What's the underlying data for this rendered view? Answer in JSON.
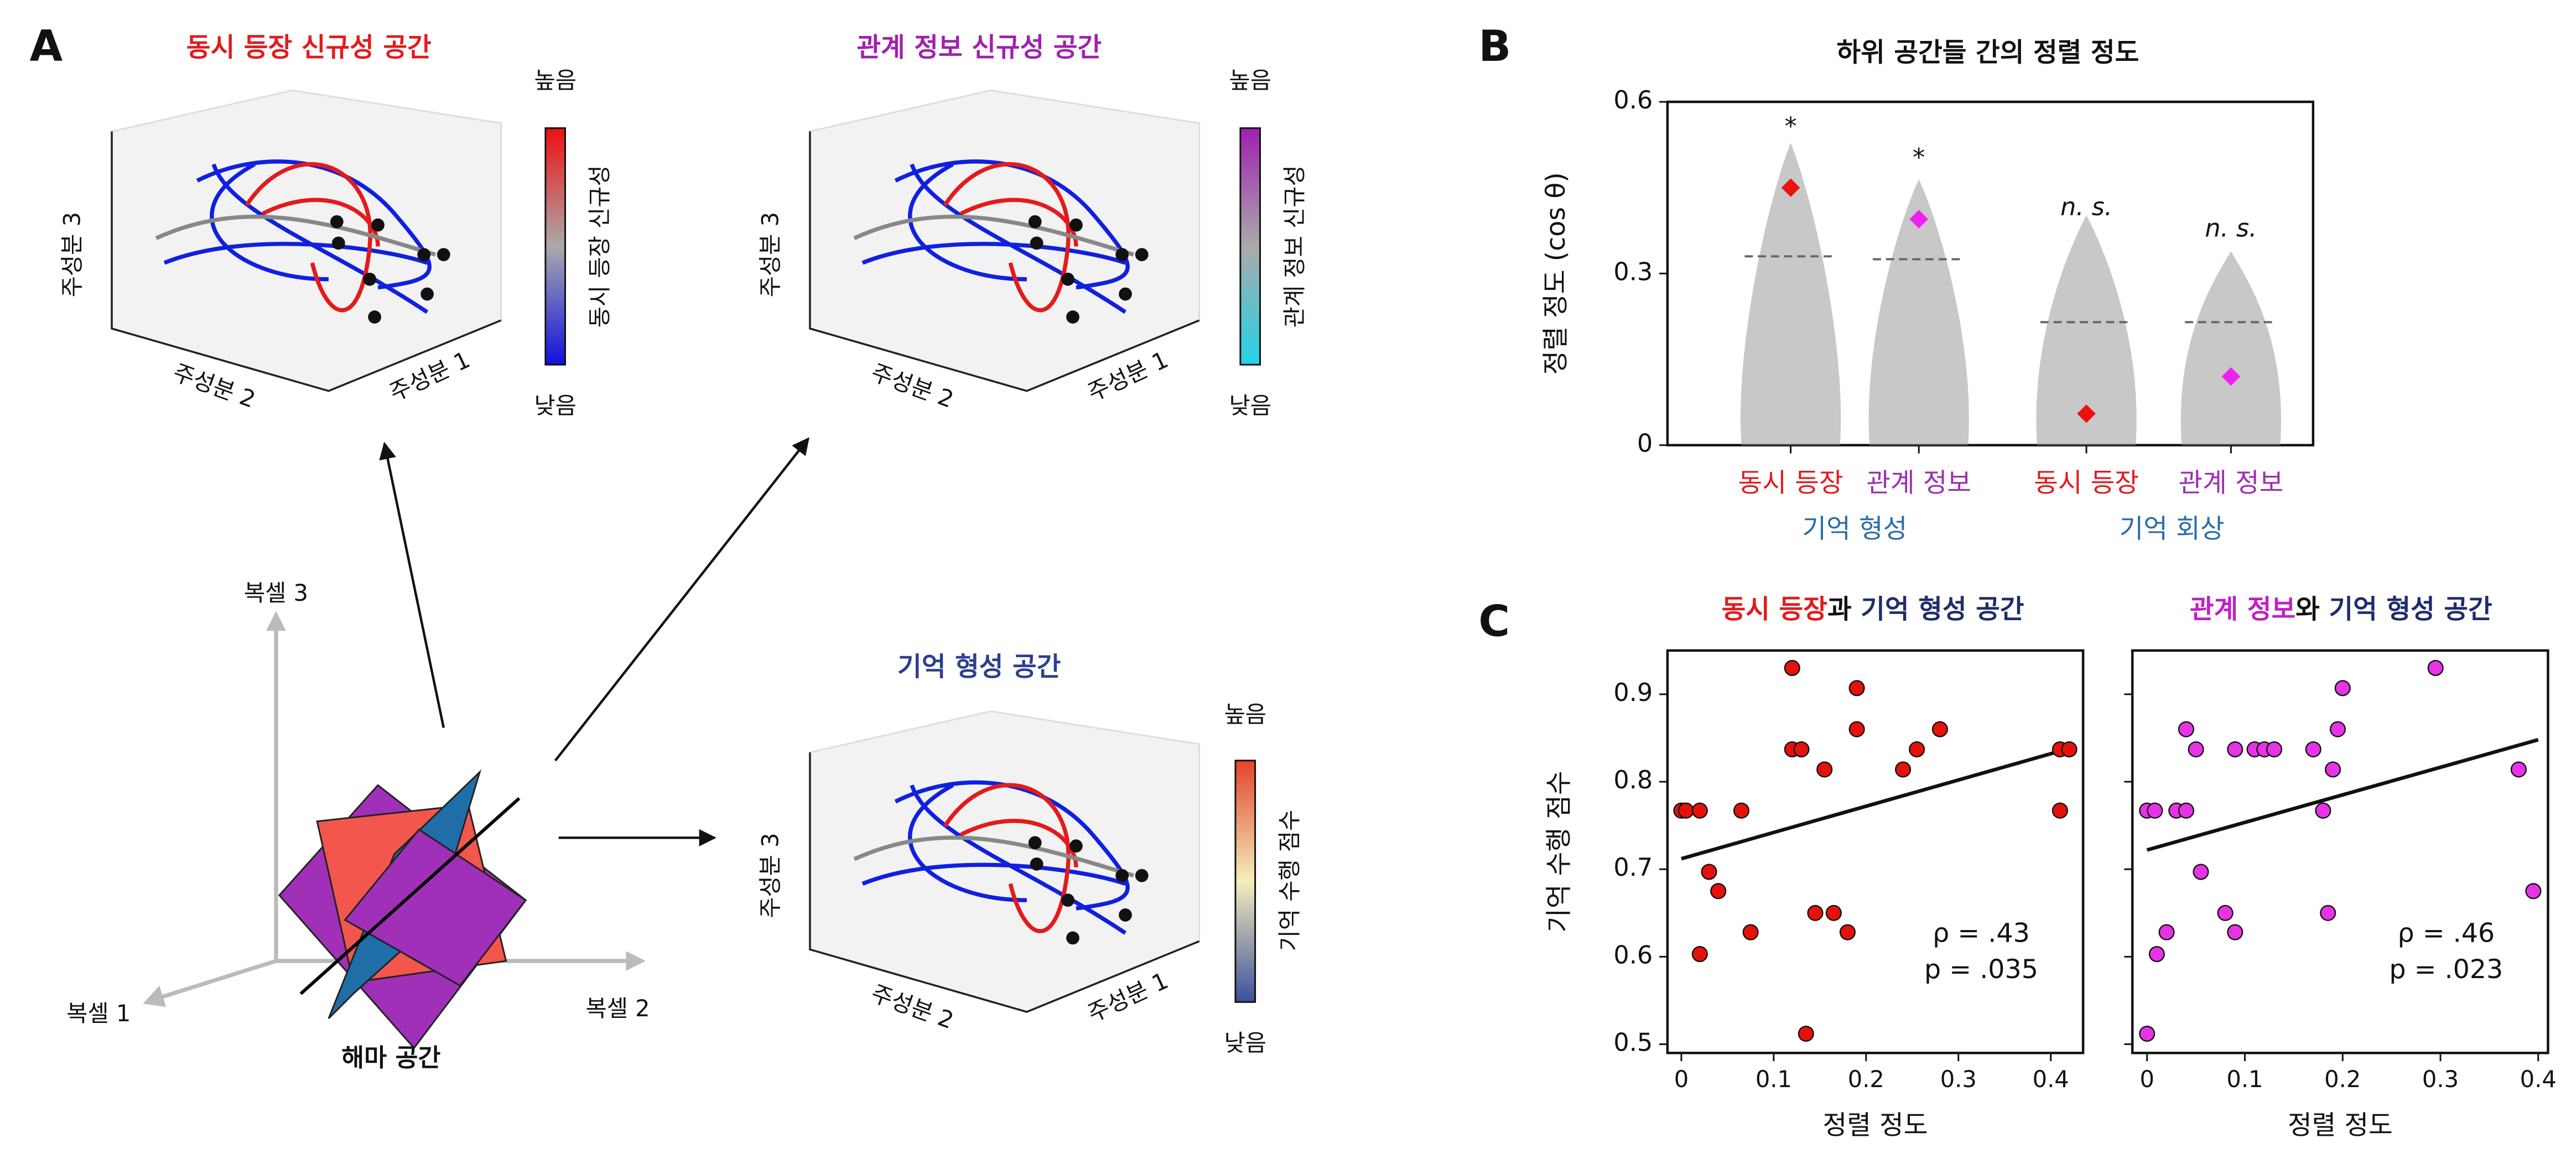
{
  "panel_a": {
    "label": "A",
    "co_title": "동시 등장 신규성 공간",
    "rel_title": "관계 정보 신규성 공간",
    "mem_title": "기억 형성 공간",
    "pc1": "주성분 1",
    "pc2": "주성분 2",
    "pc3": "주성분 3",
    "high": "높음",
    "low": "낮음",
    "co_cbar": "동시 등장 신규성",
    "rel_cbar": "관계 정보 신규성",
    "mem_cbar": "기억 수행 점수",
    "voxel1": "복셀 1",
    "voxel2": "복셀 2",
    "voxel3": "복셀 3",
    "hippo": "해마 공간"
  },
  "chart_data": [
    {
      "type": "strip",
      "label": "B",
      "title": "하위 공간들 간의 정렬 정도",
      "y_label": "정렬 정도 (cos θ)",
      "categories": [
        "동시 등장",
        "관계 정보",
        "동시 등장",
        "관계 정보"
      ],
      "category_colors": [
        "#e41a1c",
        "#9b30b0",
        "#e41a1c",
        "#9b30b0"
      ],
      "groups": [
        "기억 형성",
        "기억 회상"
      ],
      "group_color": "#2c6da6",
      "values": [
        0.45,
        0.395,
        0.055,
        0.12
      ],
      "colors": [
        "#ee1111",
        "#ee22ee",
        "#ee1111",
        "#ee22ee"
      ],
      "means": [
        0.33,
        0.325,
        0.215,
        0.215
      ],
      "annotations": [
        "*",
        "*",
        "n. s.",
        "n. s."
      ],
      "ylim": [
        0,
        0.6
      ],
      "yticks": [
        0,
        0.3,
        0.6
      ]
    },
    {
      "type": "scatter",
      "label": "C",
      "title_parts": [
        "동시 등장",
        "과 ",
        "기억 형성 공간"
      ],
      "title_colors": [
        "#e41a1c",
        "#111111",
        "#1f2d6b"
      ],
      "x_label": "정렬 정도",
      "y_label": "기억 수행 점수",
      "color": "#e3120b",
      "x": [
        0.0,
        0.005,
        0.02,
        0.02,
        0.03,
        0.04,
        0.065,
        0.075,
        0.12,
        0.12,
        0.13,
        0.135,
        0.145,
        0.155,
        0.165,
        0.18,
        0.19,
        0.19,
        0.24,
        0.255,
        0.28,
        0.41,
        0.42,
        0.41
      ],
      "values": [
        0.767,
        0.767,
        0.767,
        0.603,
        0.697,
        0.675,
        0.767,
        0.628,
        0.93,
        0.837,
        0.837,
        0.512,
        0.65,
        0.814,
        0.65,
        0.628,
        0.907,
        0.86,
        0.814,
        0.837,
        0.86,
        0.837,
        0.837,
        0.767
      ],
      "fit": {
        "x": [
          0,
          0.42
        ],
        "y": [
          0.712,
          0.838
        ]
      },
      "stats": [
        "ρ = .43",
        "p = .035"
      ],
      "xlim": [
        -0.015,
        0.435
      ],
      "xticks": [
        0,
        0.1,
        0.2,
        0.3,
        0.4
      ],
      "ylim": [
        0.49,
        0.95
      ],
      "yticks": [
        0.5,
        0.6,
        0.7,
        0.8,
        0.9
      ],
      "ytick_labels": true
    },
    {
      "type": "scatter",
      "title_parts": [
        "관계 정보",
        "와 ",
        "기억 형성 공간"
      ],
      "title_colors": [
        "#c21fc4",
        "#111111",
        "#1f2d6b"
      ],
      "x_label": "정렬 정도",
      "color": "#e633e6",
      "x": [
        0.0,
        0.008,
        0.0,
        0.01,
        0.02,
        0.03,
        0.04,
        0.04,
        0.05,
        0.055,
        0.08,
        0.09,
        0.09,
        0.11,
        0.12,
        0.13,
        0.17,
        0.18,
        0.185,
        0.19,
        0.195,
        0.2,
        0.295,
        0.38,
        0.395
      ],
      "values": [
        0.767,
        0.767,
        0.512,
        0.603,
        0.628,
        0.767,
        0.767,
        0.86,
        0.837,
        0.697,
        0.65,
        0.628,
        0.837,
        0.837,
        0.837,
        0.837,
        0.837,
        0.767,
        0.65,
        0.814,
        0.86,
        0.907,
        0.93,
        0.814,
        0.675
      ],
      "fit": {
        "x": [
          0,
          0.4
        ],
        "y": [
          0.722,
          0.848
        ]
      },
      "stats": [
        "ρ = .46",
        "p = .023"
      ],
      "xlim": [
        -0.015,
        0.41
      ],
      "xticks": [
        0,
        0.1,
        0.2,
        0.3,
        0.4
      ],
      "ylim": [
        0.49,
        0.95
      ],
      "yticks": [
        0.5,
        0.6,
        0.7,
        0.8,
        0.9
      ],
      "ytick_labels": false
    }
  ]
}
